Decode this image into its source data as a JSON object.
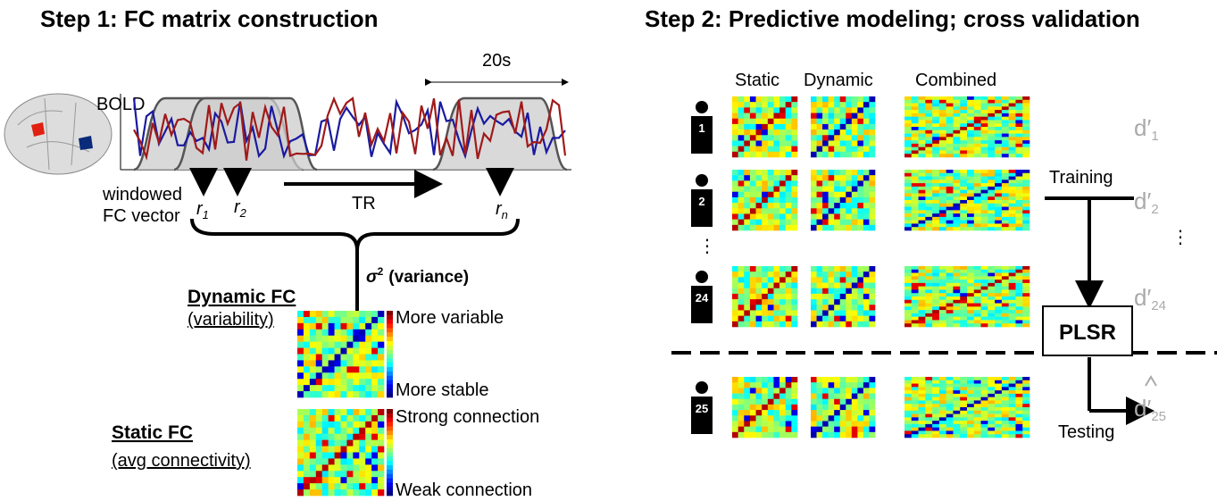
{
  "step1": {
    "title": "Step 1: FC matrix construction",
    "bold_label": "BOLD",
    "window_length": "20s",
    "windowed_label": [
      "windowed",
      "FC vector"
    ],
    "vectors": [
      {
        "base": "r",
        "sub": "1"
      },
      {
        "base": "r",
        "sub": "2"
      },
      {
        "base": "r",
        "sub": "n"
      }
    ],
    "tr_label": "TR",
    "variance": {
      "base": "σ",
      "sup": "2",
      "text": "(variance)"
    },
    "dynamic": {
      "title": "Dynamic FC",
      "subtitle": "(variability)",
      "high": "More variable",
      "low": "More stable"
    },
    "static": {
      "title": "Static FC",
      "subtitle": "(avg connectivity)",
      "high": "Strong connection",
      "low": "Weak connection"
    }
  },
  "step2": {
    "title": "Step 2: Predictive modeling; cross validation",
    "columns": [
      "Static",
      "Dynamic",
      "Combined"
    ],
    "subjects": [
      {
        "id": "1",
        "score": {
          "base": "d′",
          "sub": "1"
        }
      },
      {
        "id": "2",
        "score": {
          "base": "d′",
          "sub": "2"
        }
      },
      {
        "id": "24",
        "score": {
          "base": "d′",
          "sub": "24"
        }
      },
      {
        "id": "25",
        "score": {
          "base": "d′",
          "sub": "25"
        }
      }
    ],
    "ellipsis": "⋮",
    "training": "Training",
    "model": "PLSR",
    "testing": "Testing"
  }
}
